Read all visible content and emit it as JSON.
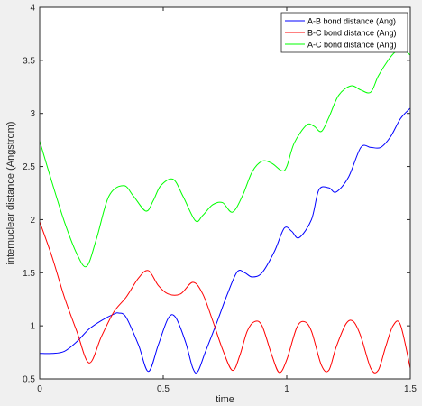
{
  "chart_data": {
    "type": "line",
    "title": "",
    "xlabel": "time",
    "ylabel": "internuclear distance (Angstrom)",
    "xlim": [
      0,
      1.5
    ],
    "ylim": [
      0.5,
      4
    ],
    "xticks": [
      0,
      0.5,
      1,
      1.5
    ],
    "xtick_labels": [
      "0",
      "0.5",
      "1",
      "1.5"
    ],
    "yticks": [
      0.5,
      1,
      1.5,
      2,
      2.5,
      3,
      3.5,
      4
    ],
    "ytick_labels": [
      "0.5",
      "1",
      "1.5",
      "2",
      "2.5",
      "3",
      "3.5",
      "4"
    ],
    "grid": false,
    "legend_position": "top-right",
    "series": [
      {
        "name": "A-B bond distance (Ang)",
        "color": "#0000ff",
        "x": [
          0,
          0.05,
          0.1,
          0.15,
          0.2,
          0.25,
          0.3,
          0.32,
          0.35,
          0.4,
          0.44,
          0.48,
          0.52,
          0.55,
          0.59,
          0.62,
          0.64,
          0.67,
          0.72,
          0.76,
          0.8,
          0.83,
          0.86,
          0.9,
          0.95,
          0.99,
          1.02,
          1.05,
          1.1,
          1.13,
          1.17,
          1.2,
          1.25,
          1.3,
          1.34,
          1.38,
          1.42,
          1.46,
          1.5
        ],
        "y": [
          0.74,
          0.74,
          0.76,
          0.85,
          0.97,
          1.05,
          1.11,
          1.12,
          1.08,
          0.82,
          0.57,
          0.82,
          1.07,
          1.08,
          0.85,
          0.6,
          0.57,
          0.75,
          1.05,
          1.3,
          1.51,
          1.5,
          1.46,
          1.5,
          1.7,
          1.92,
          1.89,
          1.83,
          2.0,
          2.28,
          2.3,
          2.26,
          2.4,
          2.68,
          2.68,
          2.68,
          2.78,
          2.95,
          3.05
        ]
      },
      {
        "name": "B-C bond distance (Ang)",
        "color": "#ff0000",
        "x": [
          0,
          0.05,
          0.1,
          0.15,
          0.2,
          0.25,
          0.3,
          0.35,
          0.4,
          0.44,
          0.48,
          0.52,
          0.57,
          0.62,
          0.66,
          0.7,
          0.74,
          0.78,
          0.81,
          0.84,
          0.87,
          0.9,
          0.94,
          0.97,
          1.0,
          1.04,
          1.07,
          1.1,
          1.14,
          1.17,
          1.2,
          1.24,
          1.27,
          1.3,
          1.34,
          1.37,
          1.4,
          1.43,
          1.46,
          1.5
        ],
        "y": [
          1.98,
          1.65,
          1.27,
          0.95,
          0.65,
          0.9,
          1.13,
          1.27,
          1.45,
          1.52,
          1.38,
          1.3,
          1.3,
          1.41,
          1.3,
          1.05,
          0.78,
          0.58,
          0.72,
          0.95,
          1.04,
          1.0,
          0.72,
          0.56,
          0.68,
          0.98,
          1.04,
          0.95,
          0.63,
          0.58,
          0.8,
          1.02,
          1.04,
          0.9,
          0.6,
          0.58,
          0.8,
          1.0,
          1.01,
          0.6
        ]
      },
      {
        "name": "A-C bond distance (Ang)",
        "color": "#00ff00",
        "x": [
          0,
          0.05,
          0.1,
          0.15,
          0.19,
          0.23,
          0.28,
          0.34,
          0.38,
          0.43,
          0.46,
          0.49,
          0.54,
          0.58,
          0.63,
          0.66,
          0.7,
          0.74,
          0.78,
          0.82,
          0.86,
          0.9,
          0.94,
          0.98,
          1.0,
          1.03,
          1.08,
          1.11,
          1.14,
          1.17,
          1.21,
          1.26,
          1.3,
          1.34,
          1.37,
          1.41,
          1.44,
          1.47,
          1.5
        ],
        "y": [
          2.74,
          2.35,
          1.98,
          1.68,
          1.56,
          1.82,
          2.22,
          2.32,
          2.22,
          2.08,
          2.18,
          2.32,
          2.38,
          2.22,
          1.99,
          2.04,
          2.14,
          2.16,
          2.07,
          2.22,
          2.45,
          2.55,
          2.53,
          2.46,
          2.5,
          2.72,
          2.89,
          2.88,
          2.83,
          2.96,
          3.17,
          3.26,
          3.22,
          3.2,
          3.35,
          3.5,
          3.58,
          3.6,
          3.55
        ]
      }
    ]
  }
}
